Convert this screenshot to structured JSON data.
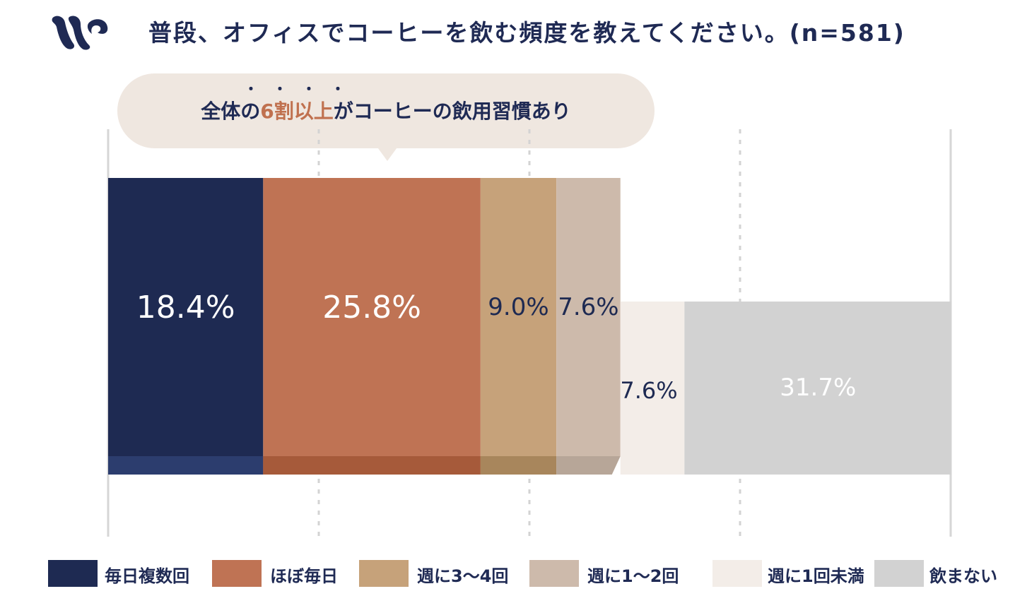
{
  "title": "普段、オフィスでコーヒーを飲む頻度を教えてください。(n=581)",
  "callout": {
    "prefix": "全体の",
    "highlight": "6割以上",
    "suffix": "がコーヒーの飲用習慣あり",
    "emphasis_dots": "・・・・"
  },
  "chart_data": {
    "type": "bar",
    "orientation": "horizontal-stacked",
    "title": "普段、オフィスでコーヒーを飲む頻度を教えてください。(n=581)",
    "xlim": [
      0,
      100
    ],
    "unit": "%",
    "grid": true,
    "legend_position": "bottom",
    "series": [
      {
        "name": "毎日複数回",
        "value": 18.4,
        "label": "18.4%",
        "color": "#1e2a52",
        "shade": "#2c3d6e",
        "label_color": "#ffffff",
        "group": "habit"
      },
      {
        "name": "ほぼ毎日",
        "value": 25.8,
        "label": "25.8%",
        "color": "#bf7354",
        "shade": "#a65a3a",
        "label_color": "#ffffff",
        "group": "habit"
      },
      {
        "name": "週に3〜4回",
        "value": 9.0,
        "label": "9.0%",
        "color": "#c6a27a",
        "shade": "#a8865c",
        "label_color": "#1e2a52",
        "group": "habit"
      },
      {
        "name": "週に1〜2回",
        "value": 7.6,
        "label": "7.6%",
        "color": "#cdbaab",
        "shade": "#b7a698",
        "label_color": "#1e2a52",
        "group": "habit"
      },
      {
        "name": "週に1回未満",
        "value": 7.6,
        "label": "7.6%",
        "color": "#f3ede8",
        "shade": "#f3ede8",
        "label_color": "#1e2a52",
        "group": "other"
      },
      {
        "name": "飲まない",
        "value": 31.7,
        "label": "31.7%",
        "color": "#d2d2d2",
        "shade": "#d2d2d2",
        "label_color": "#ffffff",
        "group": "other"
      }
    ]
  }
}
